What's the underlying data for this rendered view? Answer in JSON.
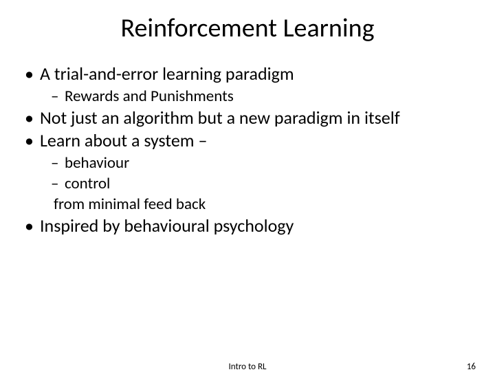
{
  "title": "Reinforcement Learning",
  "bullets": {
    "b1": "A trial-and-error learning paradigm",
    "b1a": "Rewards and Punishments",
    "b2": "Not just an algorithm but a new paradigm in itself",
    "b3": "Learn about a system –",
    "b3a": "behaviour",
    "b3b": "control",
    "b3c": "from minimal feed back",
    "b4": "Inspired by behavioural psychology"
  },
  "footer": {
    "center": "Intro to RL",
    "page": "16"
  },
  "style": {
    "background_color": "#ffffff",
    "text_color": "#000000",
    "title_fontsize": 38,
    "body_fontsize": 26,
    "sub_fontsize": 23,
    "footer_fontsize": 13,
    "font_family": "Calibri"
  }
}
